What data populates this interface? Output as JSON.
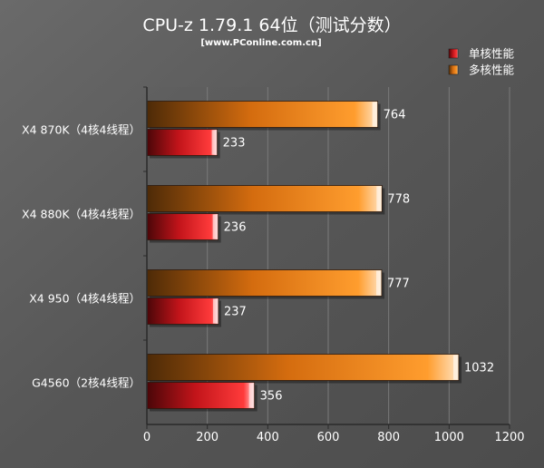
{
  "chart_data": {
    "type": "bar",
    "orientation": "horizontal",
    "title": "CPU-z 1.79.1 64位（测试分数）",
    "subtitle": "[www.PConline.com.cn]",
    "categories": [
      "X4 870K（4核4线程）",
      "X4 880K（4核4线程）",
      "X4 950（4核4线程）",
      "G4560（2核4线程）"
    ],
    "series": [
      {
        "name": "单核性能",
        "values": [
          233,
          236,
          237,
          356
        ],
        "color": "#d11a1f"
      },
      {
        "name": "多核性能",
        "values": [
          764,
          778,
          777,
          1032
        ],
        "color": "#f28a1a"
      }
    ],
    "xlim": [
      0,
      1200
    ],
    "ticks": [
      0,
      200,
      400,
      600,
      800,
      1000,
      1200
    ],
    "grid": true,
    "legend": "top-right",
    "colors": {
      "background": "#5b5b5b",
      "text": "#ffffff",
      "axis": "#2a2a2a",
      "grid": "#7a7a7a"
    }
  }
}
